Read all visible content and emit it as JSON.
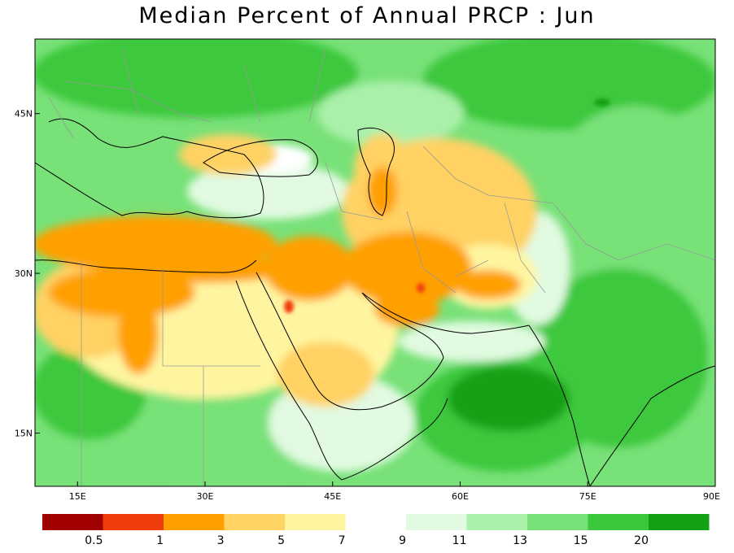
{
  "title": "Median Percent of Annual PRCP :   Jun",
  "map": {
    "x_ticks": [
      "15E",
      "30E",
      "45E",
      "60E",
      "75E",
      "90E"
    ],
    "y_ticks": [
      "45N",
      "30N",
      "15N"
    ],
    "extent": {
      "lon": [
        10,
        90
      ],
      "lat": [
        10,
        52
      ]
    }
  },
  "legend": {
    "bins": [
      {
        "color": "#a00000"
      },
      {
        "color": "#f03c0a"
      },
      {
        "color": "#ffa000"
      },
      {
        "color": "#ffd264"
      },
      {
        "color": "#fff5a0"
      },
      {
        "color": "#ffffff"
      },
      {
        "color": "#e1fae1"
      },
      {
        "color": "#aaf0aa"
      },
      {
        "color": "#78e178"
      },
      {
        "color": "#3cc83c"
      },
      {
        "color": "#14a014"
      }
    ],
    "labels": [
      "0.5",
      "1",
      "3",
      "5",
      "7",
      "9",
      "11",
      "13",
      "15",
      "20"
    ]
  }
}
